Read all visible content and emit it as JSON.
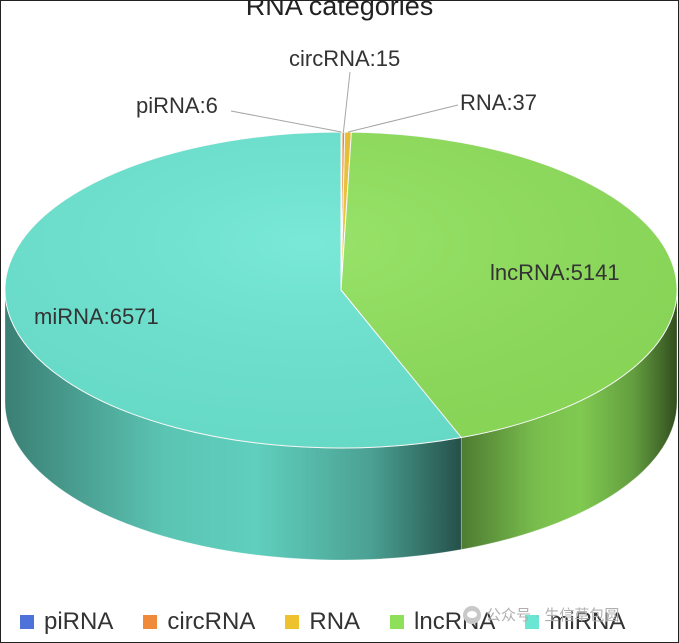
{
  "chart_data": {
    "type": "pie",
    "title": "RNA categories",
    "categories": [
      "piRNA",
      "circRNA",
      "RNA",
      "lncRNA",
      "miRNA"
    ],
    "values": [
      6,
      15,
      37,
      5141,
      6571
    ],
    "data_labels": [
      "piRNA:6",
      "circRNA:15",
      "RNA:37",
      "lncRNA:5141",
      "miRNA:6571"
    ],
    "colors": [
      "#4d72d9",
      "#ef8a3a",
      "#eec12e",
      "#8ee05a",
      "#6be6d2"
    ],
    "legend_position": "bottom",
    "style": "3d"
  },
  "watermark": "公众号 · 生信草包圆"
}
